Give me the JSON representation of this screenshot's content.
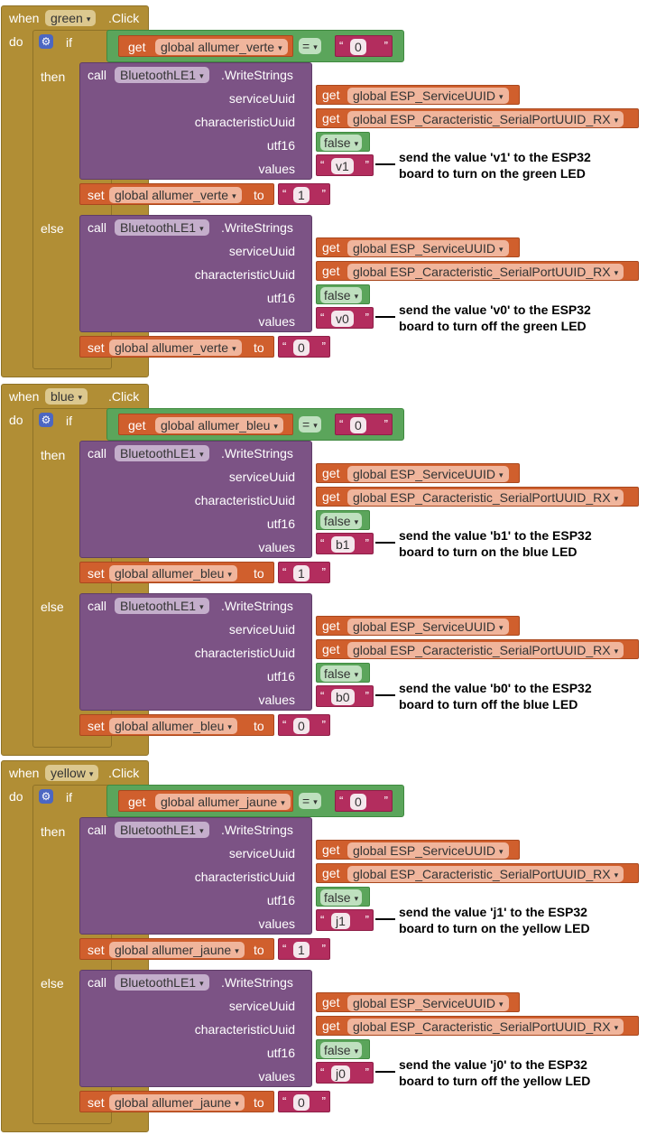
{
  "events": [
    {
      "key": "green",
      "when_kw": "when",
      "component": "green",
      "click_kw": ".Click",
      "do_kw": "do",
      "if_kw": "if",
      "then_kw": "then",
      "else_kw": "else",
      "condition": {
        "get_kw": "get",
        "variable": "global allumer_verte",
        "operator": "=",
        "value": "0"
      },
      "then": {
        "call_kw": "call",
        "component": "BluetoothLE1",
        "method": ".WriteStrings",
        "service_label": "serviceUuid",
        "service_value": "global ESP_ServiceUUID",
        "char_label": "characteristicUuid",
        "char_value": "global ESP_Caracteristic_SerialPortUUID_RX",
        "utf16_label": "utf16",
        "utf16_value": "false",
        "values_label": "values",
        "values_value": "v1",
        "note_line1": "send the value 'v1' to the ESP32",
        "note_line2": "board to turn on the green LED",
        "set_kw": "set",
        "set_variable": "global allumer_verte",
        "to_kw": "to",
        "set_value": "1"
      },
      "else": {
        "call_kw": "call",
        "component": "BluetoothLE1",
        "method": ".WriteStrings",
        "service_label": "serviceUuid",
        "service_value": "global ESP_ServiceUUID",
        "char_label": "characteristicUuid",
        "char_value": "global ESP_Caracteristic_SerialPortUUID_RX",
        "utf16_label": "utf16",
        "utf16_value": "false",
        "values_label": "values",
        "values_value": "v0",
        "note_line1": "send the value 'v0' to the ESP32",
        "note_line2": "board to turn off the green LED",
        "set_kw": "set",
        "set_variable": "global allumer_verte",
        "to_kw": "to",
        "set_value": "0"
      }
    },
    {
      "key": "blue",
      "when_kw": "when",
      "component": "blue",
      "click_kw": ".Click",
      "do_kw": "do",
      "if_kw": "if",
      "then_kw": "then",
      "else_kw": "else",
      "condition": {
        "get_kw": "get",
        "variable": "global allumer_bleu",
        "operator": "=",
        "value": "0"
      },
      "then": {
        "call_kw": "call",
        "component": "BluetoothLE1",
        "method": ".WriteStrings",
        "service_label": "serviceUuid",
        "service_value": "global ESP_ServiceUUID",
        "char_label": "characteristicUuid",
        "char_value": "global ESP_Caracteristic_SerialPortUUID_RX",
        "utf16_label": "utf16",
        "utf16_value": "false",
        "values_label": "values",
        "values_value": "b1",
        "note_line1": "send the value 'b1' to the ESP32",
        "note_line2": "board to turn on the blue LED",
        "set_kw": "set",
        "set_variable": "global allumer_bleu",
        "to_kw": "to",
        "set_value": "1"
      },
      "else": {
        "call_kw": "call",
        "component": "BluetoothLE1",
        "method": ".WriteStrings",
        "service_label": "serviceUuid",
        "service_value": "global ESP_ServiceUUID",
        "char_label": "characteristicUuid",
        "char_value": "global ESP_Caracteristic_SerialPortUUID_RX",
        "utf16_label": "utf16",
        "utf16_value": "false",
        "values_label": "values",
        "values_value": "b0",
        "note_line1": "send the value 'b0' to the ESP32",
        "note_line2": "board to turn off the blue LED",
        "set_kw": "set",
        "set_variable": "global allumer_bleu",
        "to_kw": "to",
        "set_value": "0"
      }
    },
    {
      "key": "yellow",
      "when_kw": "when",
      "component": "yellow",
      "click_kw": ".Click",
      "do_kw": "do",
      "if_kw": "if",
      "then_kw": "then",
      "else_kw": "else",
      "condition": {
        "get_kw": "get",
        "variable": "global allumer_jaune",
        "operator": "=",
        "value": "0"
      },
      "then": {
        "call_kw": "call",
        "component": "BluetoothLE1",
        "method": ".WriteStrings",
        "service_label": "serviceUuid",
        "service_value": "global ESP_ServiceUUID",
        "char_label": "characteristicUuid",
        "char_value": "global ESP_Caracteristic_SerialPortUUID_RX",
        "utf16_label": "utf16",
        "utf16_value": "false",
        "values_label": "values",
        "values_value": "j1",
        "note_line1": "send the value 'j1' to the ESP32",
        "note_line2": "board to turn on the yellow LED",
        "set_kw": "set",
        "set_variable": "global allumer_jaune",
        "to_kw": "to",
        "set_value": "1"
      },
      "else": {
        "call_kw": "call",
        "component": "BluetoothLE1",
        "method": ".WriteStrings",
        "service_label": "serviceUuid",
        "service_value": "global ESP_ServiceUUID",
        "char_label": "characteristicUuid",
        "char_value": "global ESP_Caracteristic_SerialPortUUID_RX",
        "utf16_label": "utf16",
        "utf16_value": "false",
        "values_label": "values",
        "values_value": "j0",
        "note_line1": "send the value 'j0' to the ESP32",
        "note_line2": "board to turn off the yellow LED",
        "set_kw": "set",
        "set_variable": "global allumer_jaune",
        "to_kw": "to",
        "set_value": "0"
      }
    }
  ],
  "icons": {
    "dropdown": "chevron-down-icon",
    "mutator": "gear-icon"
  },
  "colors": {
    "event": "#b18e35",
    "call": "#7c5385",
    "variable": "#d05f2d",
    "logic": "#5ba55b",
    "text": "#b32d5e",
    "control_gear": "#4c67c2"
  }
}
